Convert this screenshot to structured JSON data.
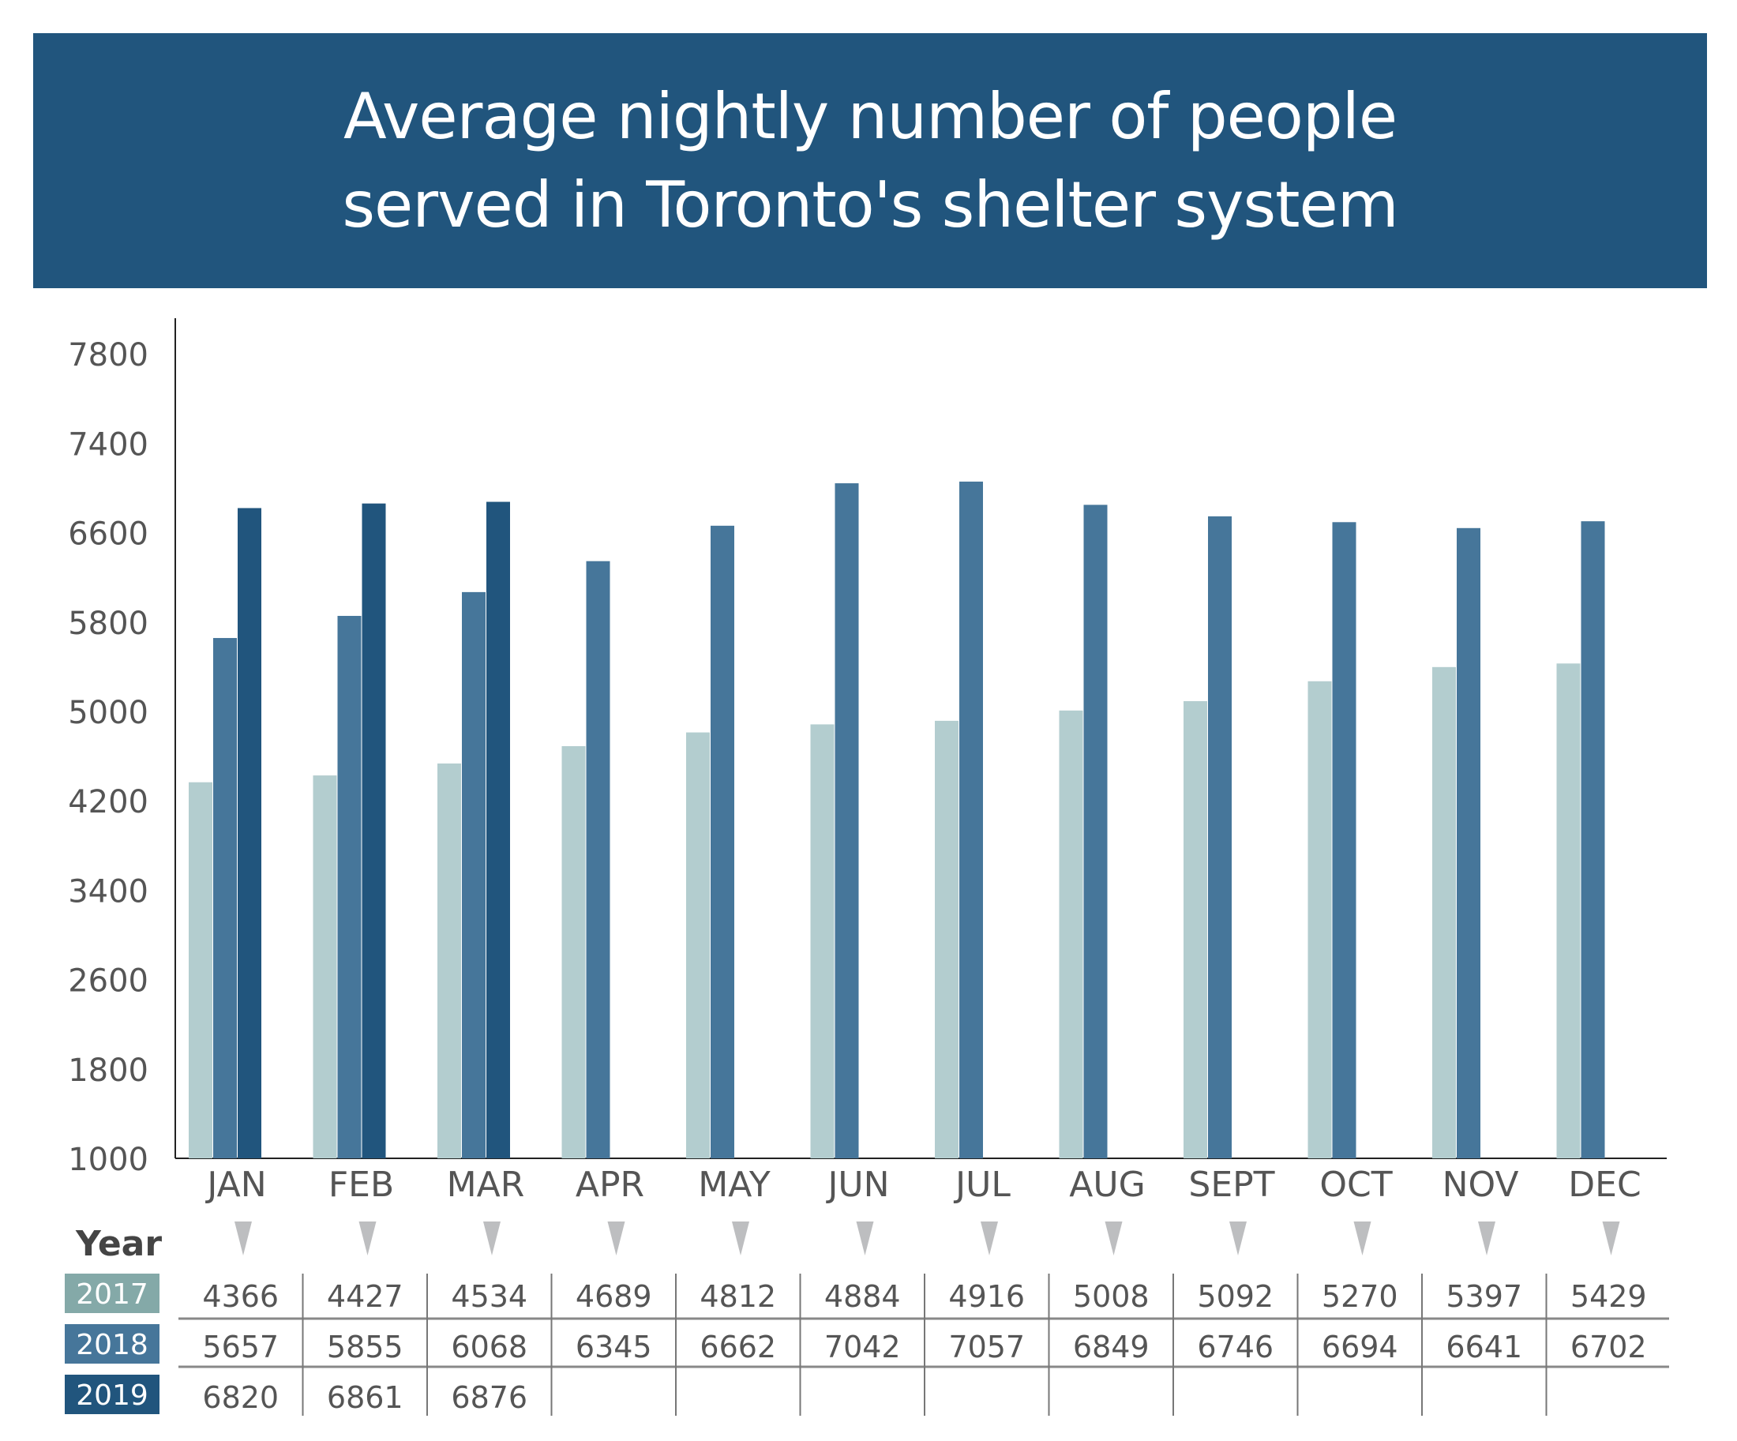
{
  "chart_data": {
    "type": "bar",
    "title_lines": [
      "Average nightly number of people",
      "served in Toronto's shelter system"
    ],
    "categories": [
      "JAN",
      "FEB",
      "MAR",
      "APR",
      "MAY",
      "JUN",
      "JUL",
      "AUG",
      "SEPT",
      "OCT",
      "NOV",
      "DEC"
    ],
    "series": [
      {
        "name": "2017",
        "values": [
          4366,
          4427,
          4534,
          4689,
          4812,
          4884,
          4916,
          5008,
          5092,
          5270,
          5397,
          5429
        ]
      },
      {
        "name": "2018",
        "values": [
          5657,
          5855,
          6068,
          6345,
          6662,
          7042,
          7057,
          6849,
          6746,
          6694,
          6641,
          6702
        ]
      },
      {
        "name": "2019",
        "values": [
          6820,
          6861,
          6876,
          null,
          null,
          null,
          null,
          null,
          null,
          null,
          null,
          null
        ]
      }
    ],
    "y_tick_labels": [
      "1000",
      "1800",
      "2600",
      "3400",
      "4200",
      "5000",
      "5800",
      "6600",
      "7400",
      "7800"
    ],
    "ylim": [
      1000,
      8500
    ],
    "grid": false,
    "legend": "table below chart",
    "table_header": "Year",
    "colors": {
      "2017_bar": "#b3cdcf",
      "2017_label": "#84a9a8",
      "2018": "#46769a",
      "2019": "#21557d",
      "title_band": "#21557d",
      "text": "#555555",
      "arrow": "#bdbec0"
    }
  }
}
